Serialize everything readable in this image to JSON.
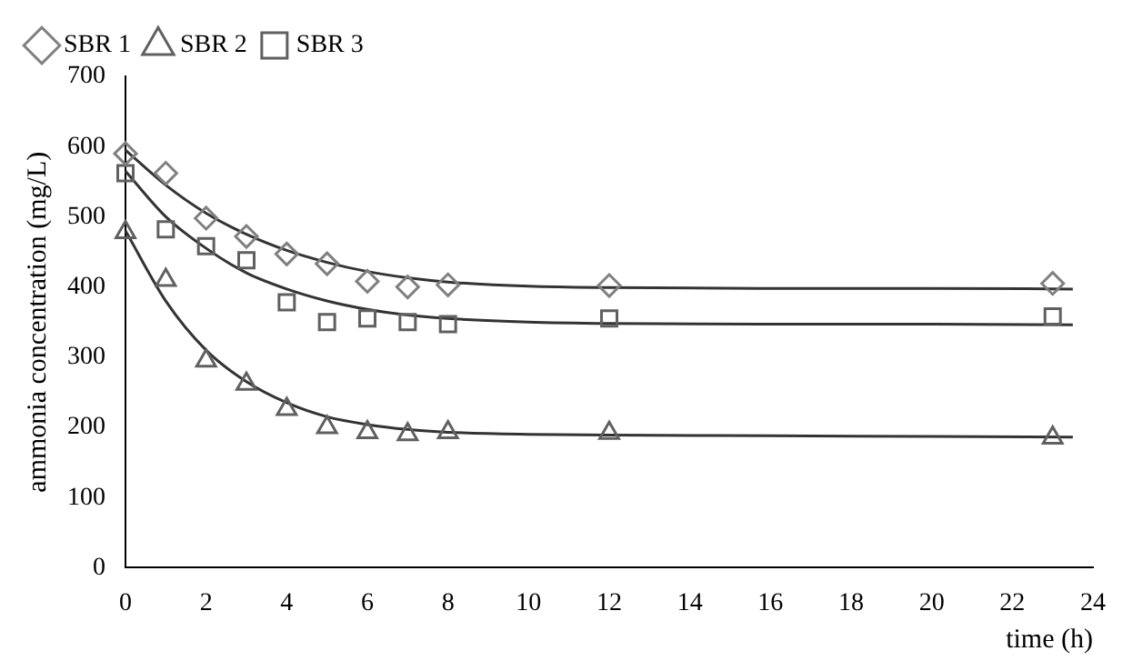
{
  "chart_data": {
    "type": "scatter",
    "xlabel": "time (h)",
    "ylabel": "ammonia concentration (mg/L)",
    "xlim": [
      0,
      24
    ],
    "xticks": [
      0,
      2,
      4,
      6,
      8,
      10,
      12,
      14,
      16,
      18,
      20,
      22,
      24
    ],
    "ylim": [
      0,
      700
    ],
    "yticks": [
      0,
      100,
      200,
      300,
      400,
      500,
      600,
      700
    ],
    "grid": false,
    "legend": "top",
    "series": [
      {
        "name": "SBR 1",
        "color": "#808080",
        "marker": "diamond",
        "x": [
          0,
          1,
          2,
          3,
          4,
          5,
          6,
          7,
          8,
          12,
          23
        ],
        "values": [
          590,
          562,
          498,
          472,
          447,
          433,
          408,
          400,
          403,
          402,
          405
        ]
      },
      {
        "name": "SBR 2",
        "color": "#606060",
        "marker": "triangle",
        "x": [
          0,
          1,
          2,
          3,
          4,
          5,
          6,
          7,
          8,
          12,
          23
        ],
        "values": [
          478,
          410,
          295,
          262,
          226,
          200,
          193,
          190,
          193,
          192,
          185
        ]
      },
      {
        "name": "SBR 3",
        "color": "#606060",
        "marker": "square",
        "x": [
          0,
          1,
          2,
          3,
          4,
          5,
          6,
          7,
          8,
          12,
          23
        ],
        "values": [
          562,
          482,
          458,
          438,
          378,
          350,
          355,
          350,
          347,
          355,
          358
        ]
      },
      {
        "type": "line",
        "color": "#333333",
        "marker": "none",
        "x": [
          0,
          1,
          2,
          3,
          4,
          5,
          6,
          7,
          8,
          10,
          12,
          16,
          20,
          23.5
        ],
        "values": [
          595,
          545,
          505,
          475,
          452,
          435,
          422,
          413,
          407,
          401,
          399,
          398,
          398,
          397
        ]
      },
      {
        "type": "line",
        "color": "#333333",
        "marker": "none",
        "x": [
          0,
          1,
          2,
          3,
          4,
          5,
          6,
          7,
          8,
          10,
          12,
          16,
          20,
          23.5
        ],
        "values": [
          480,
          380,
          310,
          265,
          235,
          215,
          204,
          197,
          193,
          190,
          189,
          188,
          187,
          186
        ]
      },
      {
        "type": "line",
        "color": "#333333",
        "marker": "none",
        "x": [
          0,
          1,
          2,
          3,
          4,
          5,
          6,
          7,
          8,
          10,
          12,
          16,
          20,
          23.5
        ],
        "values": [
          565,
          500,
          455,
          420,
          397,
          380,
          368,
          360,
          355,
          350,
          348,
          347,
          347,
          346
        ]
      }
    ]
  }
}
